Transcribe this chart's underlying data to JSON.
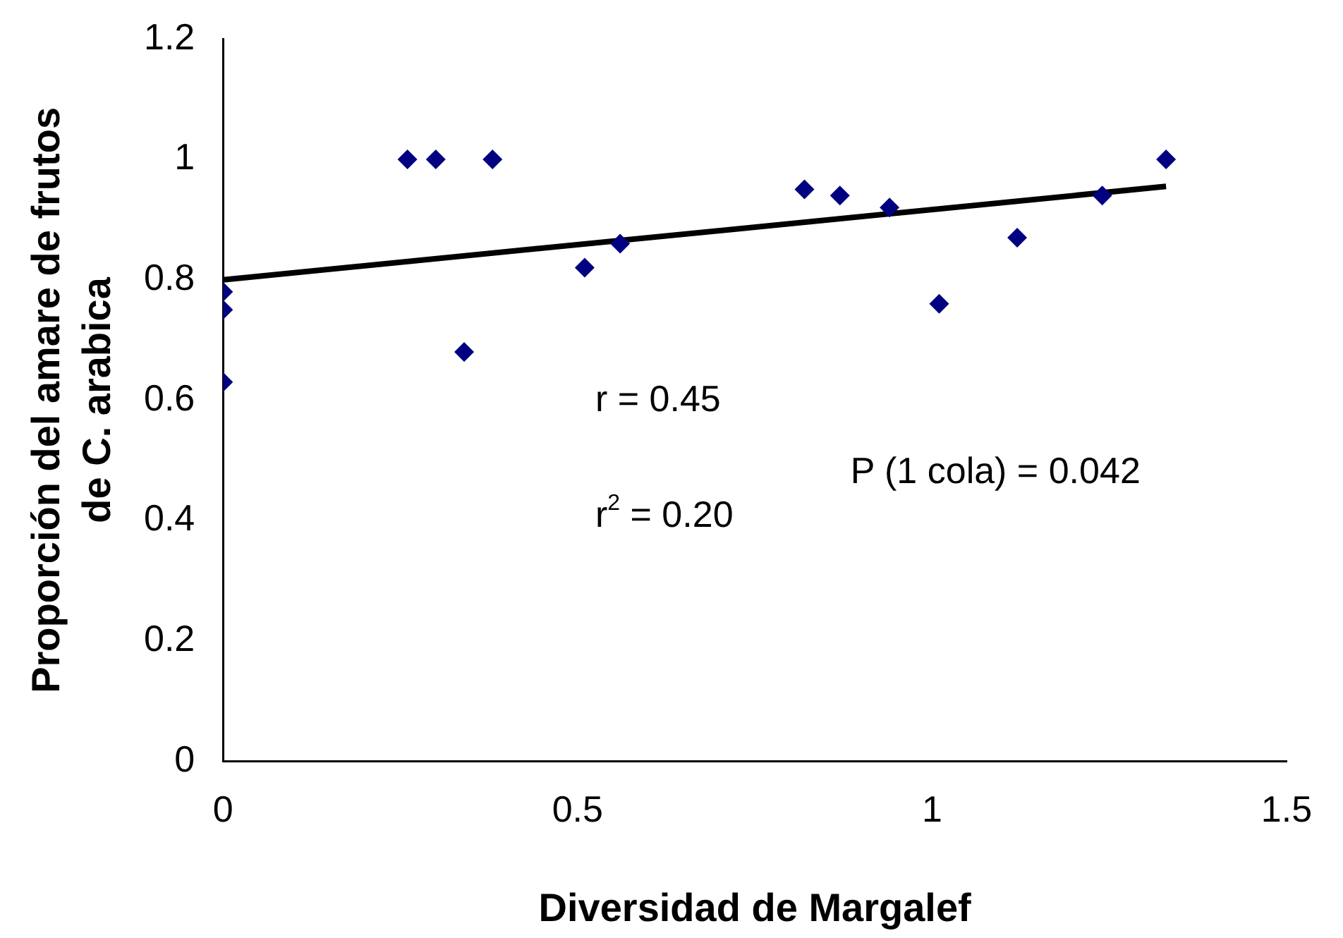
{
  "chart_data": {
    "type": "scatter",
    "xlabel": "Diversidad de Margalef",
    "ylabel": "Proporción del amare de frutos de C. arabica",
    "xlim": [
      0,
      1.5
    ],
    "xticks": [
      0,
      0.5,
      1,
      1.5
    ],
    "ylim": [
      0,
      1.2
    ],
    "yticks": [
      0,
      0.2,
      0.4,
      0.6,
      0.8,
      1,
      1.2
    ],
    "grid": false,
    "legend": false,
    "marker": "diamond",
    "series": [
      {
        "color": "#000080",
        "x": [
          0,
          0,
          0,
          0.26,
          0.3,
          0.34,
          0.38,
          0.51,
          0.56,
          0.82,
          0.87,
          0.94,
          1.01,
          1.12,
          1.24,
          1.33
        ],
        "values": [
          0.78,
          0.75,
          0.63,
          1,
          1,
          0.68,
          1,
          0.82,
          0.86,
          0.95,
          0.94,
          0.92,
          0.76,
          0.87,
          0.94,
          1
        ]
      },
      {
        "type": "line",
        "color": "#000000",
        "x": [
          0,
          1.33
        ],
        "values": [
          0.8,
          0.955
        ],
        "marker": "none",
        "line_style": "solid"
      }
    ],
    "annotations": [
      "r = 0.45",
      "r$^{2}$ = 0.20",
      "P (1 cola) = 0.042"
    ]
  }
}
